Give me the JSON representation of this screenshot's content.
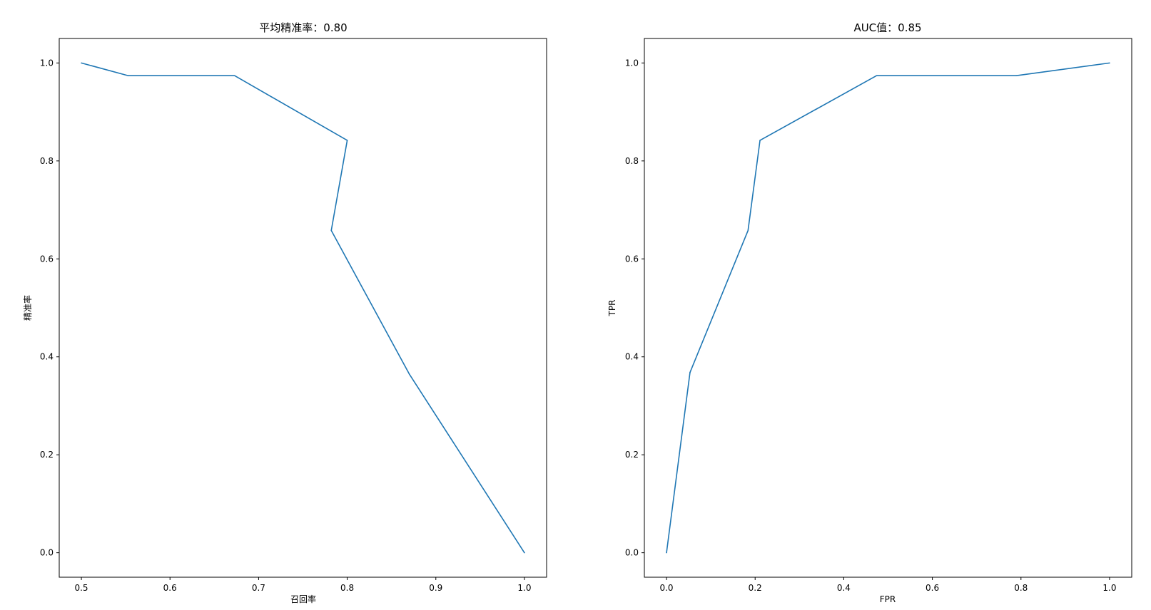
{
  "figure": {
    "background": "#ffffff",
    "line_color": "#1f77b4"
  },
  "chart_data": [
    {
      "type": "line",
      "title": "平均精准率：0.80",
      "xlabel": "召回率",
      "ylabel": "精准率",
      "xlim": [
        0.475,
        1.025
      ],
      "ylim": [
        -0.05,
        1.05
      ],
      "xticks": [
        0.5,
        0.6,
        0.7,
        0.8,
        0.9,
        1.0
      ],
      "yticks": [
        0.0,
        0.2,
        0.4,
        0.6,
        0.8,
        1.0
      ],
      "xtick_labels": [
        "0.5",
        "0.6",
        "0.7",
        "0.8",
        "0.9",
        "1.0"
      ],
      "ytick_labels": [
        "0.0",
        "0.2",
        "0.4",
        "0.6",
        "0.8",
        "1.0"
      ],
      "grid": false,
      "series": [
        {
          "x": [
            0.5,
            0.553,
            0.673,
            0.8,
            0.782,
            0.87,
            1.0
          ],
          "y": [
            1.0,
            0.974,
            0.974,
            0.842,
            0.658,
            0.365,
            0.0
          ]
        }
      ]
    },
    {
      "type": "line",
      "title": "AUC值：0.85",
      "xlabel": "FPR",
      "ylabel": "TPR",
      "xlim": [
        -0.05,
        1.05
      ],
      "ylim": [
        -0.05,
        1.05
      ],
      "xticks": [
        0.0,
        0.2,
        0.4,
        0.6,
        0.8,
        1.0
      ],
      "yticks": [
        0.0,
        0.2,
        0.4,
        0.6,
        0.8,
        1.0
      ],
      "xtick_labels": [
        "0.0",
        "0.2",
        "0.4",
        "0.6",
        "0.8",
        "1.0"
      ],
      "ytick_labels": [
        "0.0",
        "0.2",
        "0.4",
        "0.6",
        "0.8",
        "1.0"
      ],
      "grid": false,
      "series": [
        {
          "x": [
            0.0,
            0.053,
            0.184,
            0.211,
            0.474,
            0.789,
            1.0
          ],
          "y": [
            0.0,
            0.368,
            0.658,
            0.842,
            0.974,
            0.974,
            1.0
          ]
        }
      ]
    }
  ]
}
